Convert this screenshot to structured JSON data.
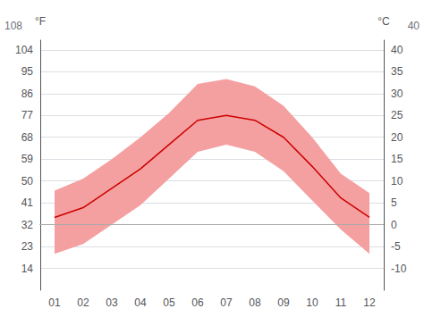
{
  "chart_data": {
    "type": "line",
    "categories": [
      "01",
      "02",
      "03",
      "04",
      "05",
      "06",
      "07",
      "08",
      "09",
      "10",
      "11",
      "12"
    ],
    "series": [
      {
        "type": "band",
        "color": "#f5a0a0",
        "low": [
          20,
          24,
          32,
          40,
          51,
          62,
          65,
          62,
          54,
          42,
          30,
          20
        ],
        "high": [
          46,
          51,
          59,
          68,
          78,
          90,
          92,
          89,
          81,
          68,
          53,
          45
        ]
      },
      {
        "type": "line",
        "color": "#cc0000",
        "values": [
          35,
          39,
          47,
          55,
          65,
          75,
          77,
          75,
          68,
          56,
          43,
          35
        ]
      }
    ],
    "ylim": [
      5,
      108
    ],
    "yticks": [
      14,
      23,
      32,
      41,
      50,
      59,
      68,
      77,
      86,
      95,
      104
    ],
    "y2lim": [
      -15,
      42.22222222222222
    ],
    "y2ticks": [
      -10,
      -5,
      0,
      5,
      10,
      15,
      20,
      25,
      30,
      35,
      40
    ],
    "ylabel": "°F",
    "y2label": "°C",
    "annotations": [
      {
        "text": "108",
        "axis": "y"
      },
      {
        "text": "40",
        "axis": "y2"
      }
    ],
    "zero_line": {
      "y": 32,
      "color": "#aaaaaa"
    },
    "grid": true
  }
}
